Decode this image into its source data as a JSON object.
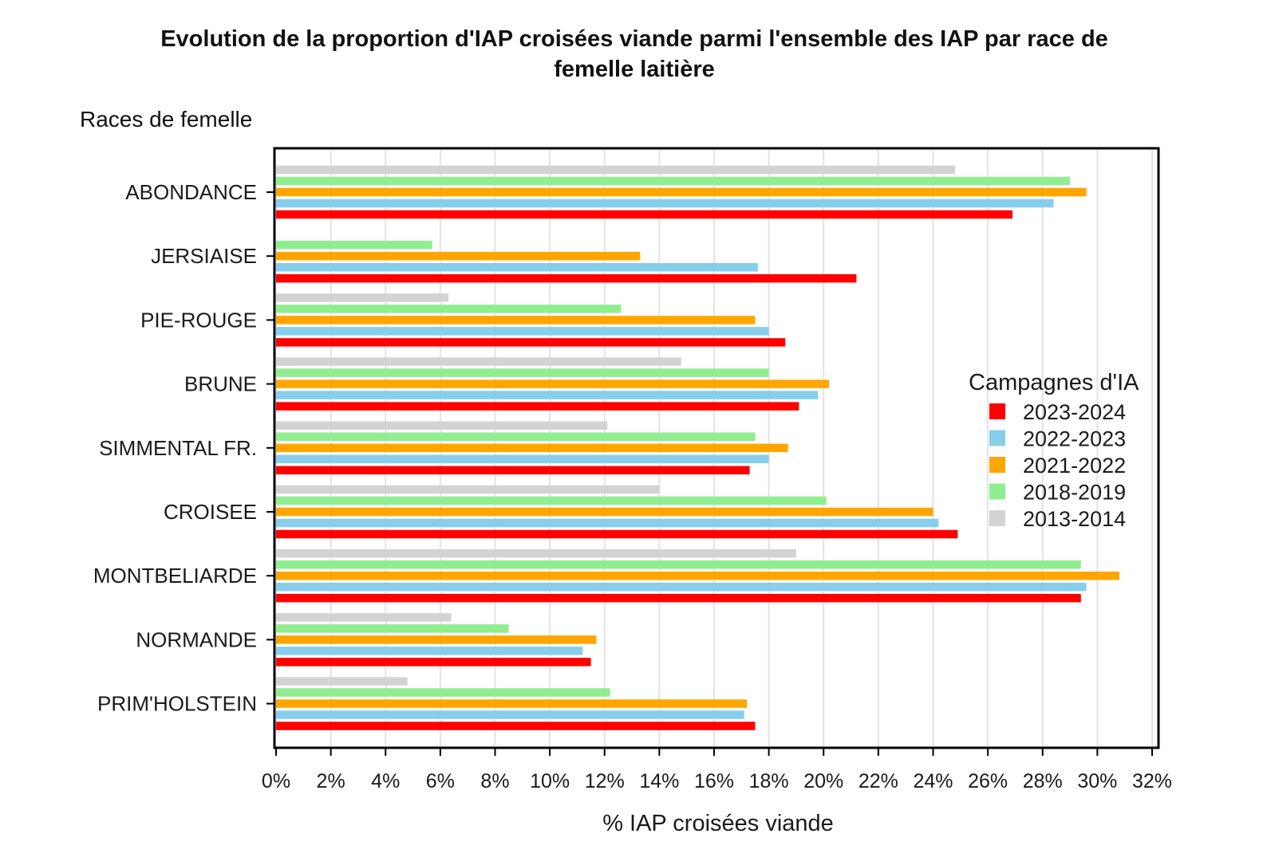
{
  "chart_data": {
    "type": "bar",
    "orientation": "horizontal",
    "title": "Evolution de la proportion d'IAP croisées viande parmi l'ensemble des IAP par race de femelle laitière",
    "title_line1": "Evolution de la proportion d'IAP croisées viande parmi l'ensemble des IAP par race de",
    "title_line2": "femelle laitière",
    "ylabel": "Races de femelle",
    "xlabel": "% IAP croisées viande",
    "xlim": [
      0,
      32
    ],
    "xticks": [
      0,
      2,
      4,
      6,
      8,
      10,
      12,
      14,
      16,
      18,
      20,
      22,
      24,
      26,
      28,
      30,
      32
    ],
    "xtick_labels": [
      "0%",
      "2%",
      "4%",
      "6%",
      "8%",
      "10%",
      "12%",
      "14%",
      "16%",
      "18%",
      "20%",
      "22%",
      "24%",
      "26%",
      "28%",
      "30%",
      "32%"
    ],
    "grid": "vertical",
    "legend_title": "Campagnes d'IA",
    "legend_position": "right",
    "categories": [
      "ABONDANCE",
      "JERSIAISE",
      "PIE-ROUGE",
      "BRUNE",
      "SIMMENTAL FR.",
      "CROISEE",
      "MONTBELIARDE",
      "NORMANDE",
      "PRIM'HOLSTEIN"
    ],
    "series": [
      {
        "name": "2023-2024",
        "color": "#ff0000",
        "values": [
          26.9,
          21.2,
          18.6,
          19.1,
          17.3,
          24.9,
          29.4,
          11.5,
          17.5
        ]
      },
      {
        "name": "2022-2023",
        "color": "#87ceeb",
        "values": [
          28.4,
          17.6,
          18.0,
          19.8,
          18.0,
          24.2,
          29.6,
          11.2,
          17.1
        ]
      },
      {
        "name": "2021-2022",
        "color": "#ffa500",
        "values": [
          29.6,
          13.3,
          17.5,
          20.2,
          18.7,
          24.0,
          30.8,
          11.7,
          17.2
        ]
      },
      {
        "name": "2018-2019",
        "color": "#90ee90",
        "values": [
          29.0,
          5.7,
          12.6,
          18.0,
          17.5,
          20.1,
          29.4,
          8.5,
          12.2
        ]
      },
      {
        "name": "2013-2014",
        "color": "#d3d3d3",
        "values": [
          24.8,
          null,
          6.3,
          14.8,
          12.1,
          14.0,
          19.0,
          6.4,
          4.8
        ]
      }
    ]
  }
}
